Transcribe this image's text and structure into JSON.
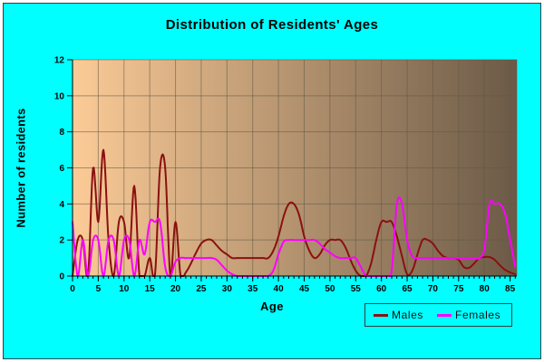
{
  "chart_data": {
    "type": "line",
    "title": "Distribution of Residents' Ages",
    "xlabel": "Age",
    "ylabel": "Number of residents",
    "xlim": [
      0,
      86.3
    ],
    "ylim": [
      0,
      12
    ],
    "x_major_ticks": [
      0,
      5,
      10,
      15,
      20,
      25,
      30,
      35,
      40,
      45,
      50,
      55,
      60,
      65,
      70,
      75,
      80,
      85
    ],
    "x_minor_tick_step": 1,
    "y_ticks": [
      0,
      2,
      4,
      6,
      8,
      10,
      12
    ],
    "grid": true,
    "legend_position": "bottom-right",
    "colors": {
      "background": "#00ffff",
      "plot_gradient_left": "#fccb97",
      "plot_gradient_right": "#6b5a47",
      "grid": "#5f5a45",
      "axis": "#000000",
      "tick_label": "#000000"
    },
    "series": [
      {
        "name": "Males",
        "color": "#8b1010",
        "ages_start_at": 0,
        "values": [
          0,
          2,
          2,
          0,
          6,
          3,
          7,
          2,
          0,
          3,
          3,
          1,
          5,
          0,
          0,
          1,
          0,
          6,
          6,
          0,
          3,
          0,
          0.2,
          0.7,
          1.3,
          1.8,
          2,
          2,
          1.7,
          1.4,
          1.2,
          1,
          1,
          1,
          1,
          1,
          1,
          1,
          1,
          1.4,
          2.2,
          3.3,
          4,
          4,
          3.4,
          2.2,
          1.4,
          1,
          1.2,
          1.7,
          2,
          2,
          2,
          1.6,
          0.9,
          0.3,
          0,
          0,
          0.7,
          2,
          3,
          3,
          3,
          2.2,
          1.1,
          0.1,
          0.3,
          1.2,
          2,
          2,
          1.8,
          1.4,
          1.1,
          1,
          1,
          0.9,
          0.5,
          0.45,
          0.7,
          1,
          1.05,
          1.05,
          0.9,
          0.6,
          0.35,
          0.2,
          0.1
        ]
      },
      {
        "name": "Females",
        "color": "#ff00ff",
        "ages_start_at": 0,
        "values": [
          3,
          0,
          2,
          0,
          2,
          2,
          0,
          2,
          2,
          0,
          2,
          2,
          0,
          2,
          1.2,
          3,
          3,
          3,
          0.5,
          0,
          0.8,
          1,
          1,
          1,
          1,
          1,
          1,
          1,
          0.9,
          0.6,
          0.3,
          0.1,
          0,
          0,
          0,
          0,
          0,
          0,
          0,
          0.3,
          1.2,
          1.9,
          2,
          2,
          2,
          2,
          2,
          2,
          1.8,
          1.5,
          1.3,
          1.1,
          1,
          1,
          1,
          1,
          0.5,
          0,
          0,
          0,
          0,
          0,
          0.3,
          4,
          4,
          2,
          1.1,
          1,
          1,
          1,
          1,
          1,
          1,
          1,
          1,
          1,
          1,
          1,
          1,
          1,
          1.5,
          4,
          4,
          4,
          3.5,
          2,
          0.5
        ]
      }
    ]
  }
}
